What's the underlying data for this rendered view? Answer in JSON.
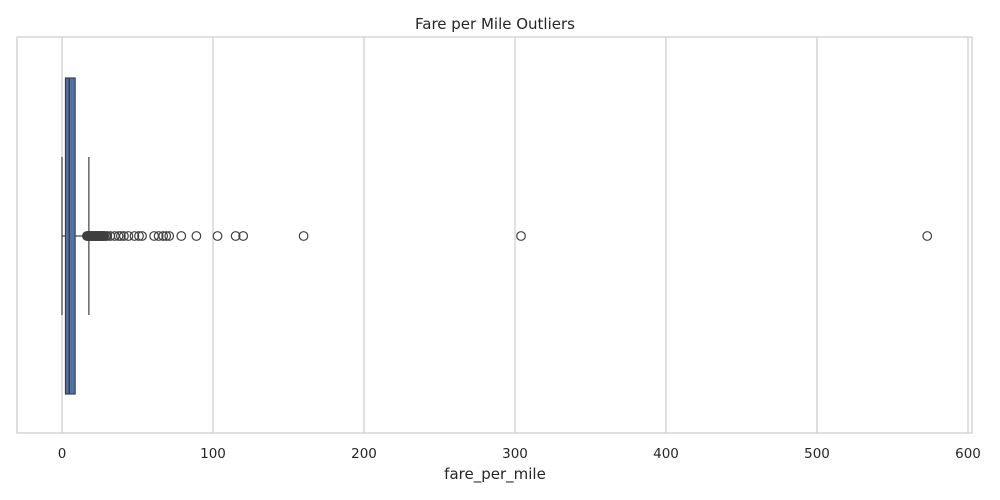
{
  "chart_data": {
    "type": "boxplot",
    "orientation": "horizontal",
    "title": "Fare per Mile Outliers",
    "xlabel": "fare_per_mile",
    "ylabel": "",
    "xlim": [
      -30,
      600
    ],
    "x_ticks": [
      0,
      100,
      200,
      300,
      400,
      500,
      600
    ],
    "grid": "vertical",
    "box_color": "#4c72b0",
    "line_color": "#3f3f3f",
    "box": {
      "whisker_low": 0,
      "q1": 2.3,
      "median": 4.8,
      "q3": 8.7,
      "whisker_high": 17.8
    },
    "outliers": [
      16.5,
      17.0,
      17.5,
      18.0,
      18.5,
      19.0,
      19.5,
      20.0,
      20.5,
      21.0,
      21.5,
      22.0,
      22.5,
      23.0,
      23.5,
      24.0,
      24.5,
      25.0,
      25.5,
      26.0,
      26.5,
      27.0,
      27.5,
      28.0,
      29.0,
      30.0,
      32.0,
      35.0,
      37.5,
      39.0,
      41.0,
      44.0,
      48.0,
      51.0,
      53.0,
      61.0,
      64.0,
      67.0,
      69.0,
      71.0,
      79.0,
      89.0,
      103.0,
      115.0,
      120.0,
      160.0,
      304.0,
      573.0
    ]
  }
}
